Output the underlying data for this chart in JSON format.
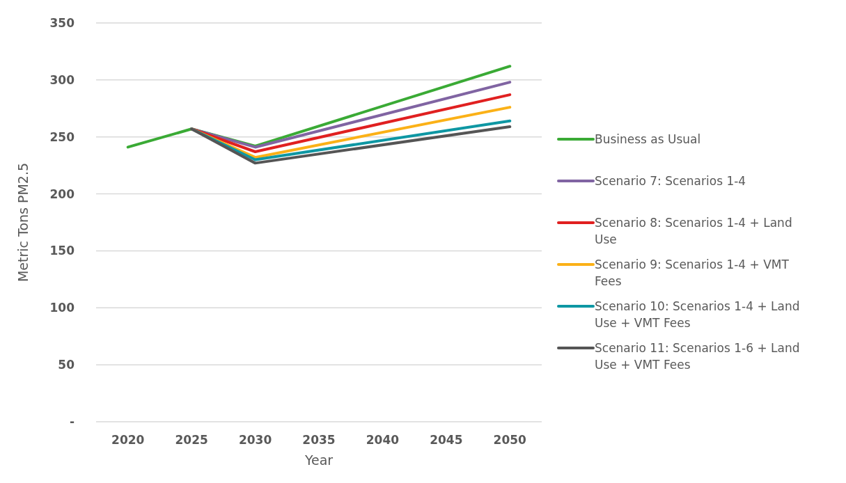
{
  "chart_data": {
    "type": "line",
    "xlabel": "Year",
    "ylabel": "Metric Tons PM2.5",
    "xlim": [
      2017.5,
      2052.5
    ],
    "xticks": [
      2020,
      2025,
      2030,
      2035,
      2040,
      2045,
      2050
    ],
    "ylim": [
      0,
      350
    ],
    "yticks": [
      {
        "value": 0,
        "label": "-"
      },
      50,
      100,
      150,
      200,
      250,
      300,
      350
    ],
    "grid": "y",
    "legend": "right",
    "marker": "none",
    "line_style": "solid",
    "series": [
      {
        "name": "Business as Usual",
        "color": "#3aaa35",
        "x": [
          2020,
          2025,
          2030,
          2050
        ],
        "values": [
          241,
          257,
          242,
          312
        ]
      },
      {
        "name": "Scenario 7: Scenarios 1-4",
        "color": "#8064a2",
        "x": [
          2025,
          2030,
          2050
        ],
        "values": [
          257,
          241,
          298
        ]
      },
      {
        "name": "Scenario 8: Scenarios 1-4 + Land Use",
        "color": "#e02020",
        "x": [
          2025,
          2030,
          2050
        ],
        "values": [
          257,
          237,
          287
        ]
      },
      {
        "name": "Scenario 9: Scenarios 1-4 + VMT Fees",
        "color": "#fbb117",
        "x": [
          2025,
          2030,
          2050
        ],
        "values": [
          257,
          232,
          276
        ]
      },
      {
        "name": "Scenario 10: Scenarios 1-4  + Land Use + VMT Fees",
        "color": "#0e97a3",
        "x": [
          2025,
          2030,
          2050
        ],
        "values": [
          257,
          230,
          264
        ]
      },
      {
        "name": "Scenario 11: Scenarios 1-6 + Land Use + VMT Fees",
        "color": "#555555",
        "x": [
          2025,
          2030,
          2050
        ],
        "values": [
          257,
          227,
          259
        ]
      }
    ]
  }
}
